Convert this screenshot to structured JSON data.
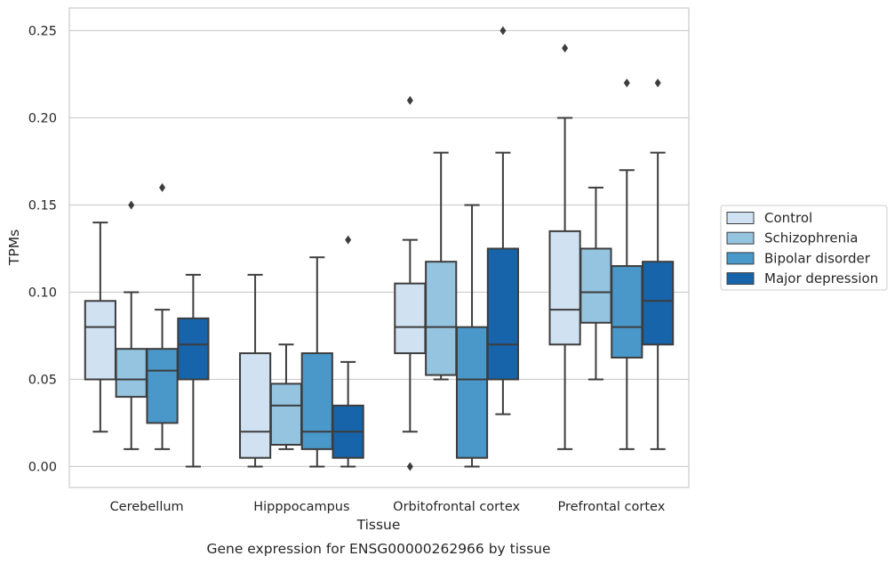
{
  "chart_data": {
    "type": "box",
    "caption": "Gene expression for ENSG00000262966 by tissue",
    "xlabel": "Tissue",
    "ylabel": "TPMs",
    "ylim": [
      -0.012,
      0.263
    ],
    "yticks": [
      "0.00",
      "0.05",
      "0.10",
      "0.15",
      "0.20",
      "0.25"
    ],
    "ytick_values": [
      0.0,
      0.05,
      0.1,
      0.15,
      0.2,
      0.25
    ],
    "grid": "horizontal",
    "legend_position": "right",
    "categories": [
      "Cerebellum",
      "Hipppocampus",
      "Orbitofrontal cortex",
      "Prefrontal cortex"
    ],
    "series": [
      {
        "name": "Control",
        "color": "#d0e1f2",
        "boxes": [
          {
            "whisker_low": 0.02,
            "q1": 0.05,
            "median": 0.08,
            "q3": 0.095,
            "whisker_high": 0.14,
            "outliers": []
          },
          {
            "whisker_low": 0.0,
            "q1": 0.005,
            "median": 0.02,
            "q3": 0.065,
            "whisker_high": 0.11,
            "outliers": []
          },
          {
            "whisker_low": 0.02,
            "q1": 0.065,
            "median": 0.08,
            "q3": 0.105,
            "whisker_high": 0.13,
            "outliers": [
              0.21,
              0.0
            ]
          },
          {
            "whisker_low": 0.01,
            "q1": 0.07,
            "median": 0.09,
            "q3": 0.135,
            "whisker_high": 0.2,
            "outliers": [
              0.24
            ]
          }
        ]
      },
      {
        "name": "Schizophrenia",
        "color": "#94c4df",
        "boxes": [
          {
            "whisker_low": 0.01,
            "q1": 0.04,
            "median": 0.05,
            "q3": 0.0675,
            "whisker_high": 0.1,
            "outliers": [
              0.15
            ]
          },
          {
            "whisker_low": 0.01,
            "q1": 0.0125,
            "median": 0.035,
            "q3": 0.0475,
            "whisker_high": 0.07,
            "outliers": []
          },
          {
            "whisker_low": 0.05,
            "q1": 0.0525,
            "median": 0.08,
            "q3": 0.1175,
            "whisker_high": 0.18,
            "outliers": []
          },
          {
            "whisker_low": 0.05,
            "q1": 0.0825,
            "median": 0.1,
            "q3": 0.125,
            "whisker_high": 0.16,
            "outliers": []
          }
        ]
      },
      {
        "name": "Bipolar disorder",
        "color": "#4a98c9",
        "boxes": [
          {
            "whisker_low": 0.01,
            "q1": 0.025,
            "median": 0.055,
            "q3": 0.0675,
            "whisker_high": 0.09,
            "outliers": [
              0.16
            ]
          },
          {
            "whisker_low": 0.0,
            "q1": 0.01,
            "median": 0.02,
            "q3": 0.065,
            "whisker_high": 0.12,
            "outliers": []
          },
          {
            "whisker_low": 0.0,
            "q1": 0.005,
            "median": 0.05,
            "q3": 0.08,
            "whisker_high": 0.15,
            "outliers": []
          },
          {
            "whisker_low": 0.01,
            "q1": 0.0625,
            "median": 0.08,
            "q3": 0.115,
            "whisker_high": 0.17,
            "outliers": [
              0.22
            ]
          }
        ]
      },
      {
        "name": "Major depression",
        "color": "#1764ab",
        "boxes": [
          {
            "whisker_low": 0.0,
            "q1": 0.05,
            "median": 0.07,
            "q3": 0.085,
            "whisker_high": 0.11,
            "outliers": []
          },
          {
            "whisker_low": 0.0,
            "q1": 0.005,
            "median": 0.02,
            "q3": 0.035,
            "whisker_high": 0.06,
            "outliers": [
              0.13
            ]
          },
          {
            "whisker_low": 0.03,
            "q1": 0.05,
            "median": 0.07,
            "q3": 0.125,
            "whisker_high": 0.18,
            "outliers": [
              0.25
            ]
          },
          {
            "whisker_low": 0.01,
            "q1": 0.07,
            "median": 0.095,
            "q3": 0.1175,
            "whisker_high": 0.18,
            "outliers": [
              0.22
            ]
          }
        ]
      }
    ]
  }
}
